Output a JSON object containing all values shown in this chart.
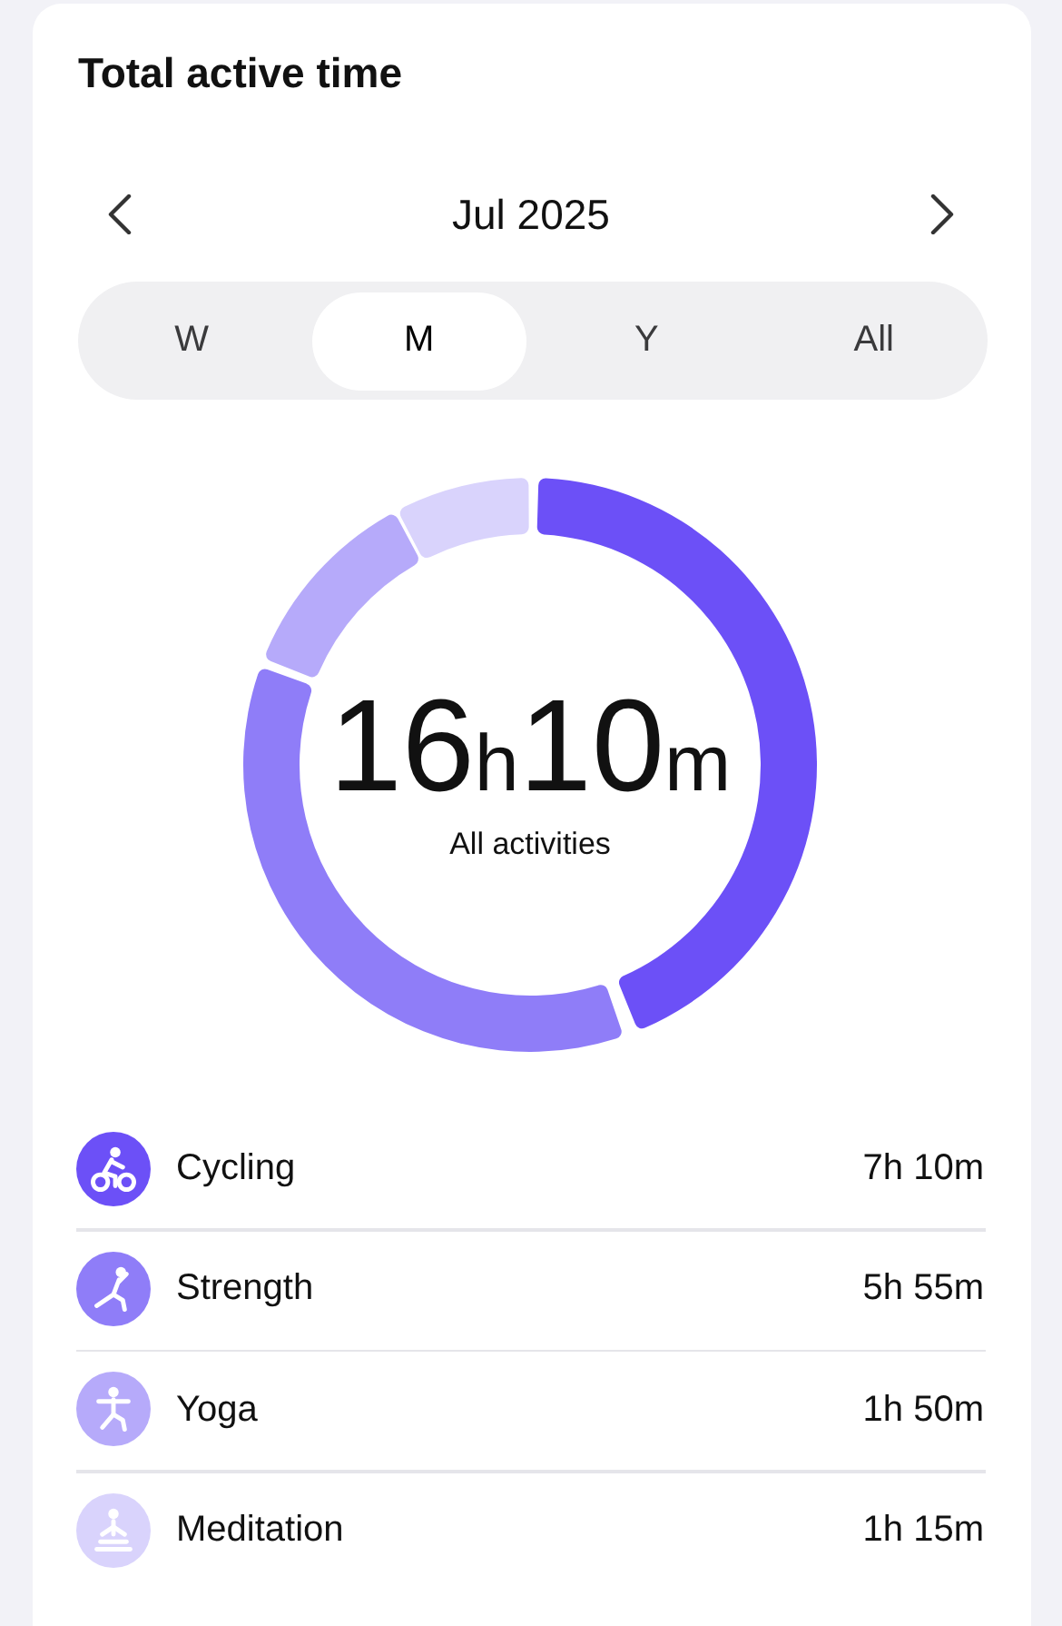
{
  "chart_data": {
    "type": "donut",
    "title": "Total active time",
    "subtitle": "Jul 2025",
    "categories": [
      "Cycling",
      "Strength",
      "Yoga",
      "Meditation"
    ],
    "values": [
      44.33,
      36.6,
      11.34,
      7.73
    ],
    "colors": [
      "#6c50f7",
      "#8f7df8",
      "#b6aafa",
      "#d9d3fc"
    ],
    "annotations": [
      "16h10m",
      "All activities",
      "W",
      "M",
      "Y",
      "All",
      "7h 10m",
      "5h 55m",
      "1h 50m",
      "1h 15m"
    ],
    "legend": "bottom"
  }
}
